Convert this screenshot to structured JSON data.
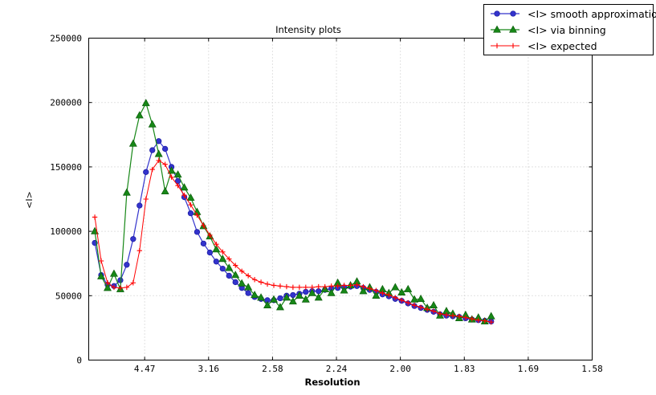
{
  "chart_data": {
    "type": "line",
    "title": "Intensity plots",
    "xlabel": "Resolution",
    "ylabel": "<I>",
    "grid": true,
    "legend_position": "upper right, partly outside axes",
    "xlim": [
      0.00625,
      0.4
    ],
    "ylim": [
      0,
      250000
    ],
    "xticks": [
      {
        "pos": 0.05,
        "label": "4.47"
      },
      {
        "pos": 0.1,
        "label": "3.16"
      },
      {
        "pos": 0.15,
        "label": "2.58"
      },
      {
        "pos": 0.2,
        "label": "2.24"
      },
      {
        "pos": 0.25,
        "label": "2.00"
      },
      {
        "pos": 0.3,
        "label": "1.83"
      },
      {
        "pos": 0.35,
        "label": "1.69"
      },
      {
        "pos": 0.4,
        "label": "1.58"
      }
    ],
    "yticks": [
      {
        "pos": 0,
        "label": "0"
      },
      {
        "pos": 50000,
        "label": "50000"
      },
      {
        "pos": 100000,
        "label": "100000"
      },
      {
        "pos": 150000,
        "label": "150000"
      },
      {
        "pos": 200000,
        "label": "200000"
      },
      {
        "pos": 250000,
        "label": "250000"
      }
    ],
    "x": [
      0.011,
      0.016,
      0.021,
      0.026,
      0.031,
      0.036,
      0.041,
      0.046,
      0.051,
      0.056,
      0.061,
      0.066,
      0.071,
      0.076,
      0.081,
      0.086,
      0.091,
      0.096,
      0.101,
      0.106,
      0.111,
      0.116,
      0.121,
      0.126,
      0.131,
      0.136,
      0.141,
      0.146,
      0.151,
      0.156,
      0.161,
      0.166,
      0.171,
      0.176,
      0.181,
      0.186,
      0.191,
      0.196,
      0.201,
      0.206,
      0.211,
      0.216,
      0.221,
      0.226,
      0.231,
      0.236,
      0.241,
      0.246,
      0.251,
      0.256,
      0.261,
      0.266,
      0.271,
      0.276,
      0.281,
      0.286,
      0.291,
      0.296,
      0.301,
      0.306,
      0.311,
      0.316,
      0.321
    ],
    "series": [
      {
        "name": "<I> smooth approximation",
        "color": "#3333cc",
        "marker": "circle",
        "values": [
          91000,
          66000,
          58500,
          57500,
          62000,
          74000,
          94000,
          120000,
          146000,
          163000,
          170000,
          164000,
          150000,
          139000,
          126500,
          114000,
          99500,
          90500,
          83500,
          76500,
          71000,
          65500,
          60500,
          56000,
          52000,
          49000,
          47500,
          46500,
          46500,
          48000,
          50000,
          50500,
          51500,
          53000,
          53500,
          53500,
          54500,
          55500,
          56000,
          56500,
          57000,
          57500,
          56000,
          54500,
          53000,
          51000,
          49500,
          47500,
          46000,
          44000,
          42000,
          40500,
          39000,
          37500,
          35500,
          34500,
          34000,
          33500,
          32500,
          31500,
          31000,
          30500,
          30000
        ]
      },
      {
        "name": "<I> via binning",
        "color": "#178717",
        "marker": "triangle",
        "values": [
          100000,
          65000,
          56000,
          67000,
          55000,
          130000,
          168000,
          190000,
          199500,
          183000,
          160000,
          131000,
          147000,
          144000,
          134000,
          126000,
          115000,
          104000,
          96000,
          86000,
          78500,
          71500,
          66000,
          59500,
          56500,
          50500,
          48500,
          42500,
          47000,
          41000,
          48500,
          45500,
          50000,
          47000,
          52000,
          48500,
          55000,
          52000,
          60000,
          54000,
          58000,
          61000,
          53500,
          56500,
          50000,
          55000,
          52000,
          56500,
          52500,
          55000,
          47000,
          47500,
          40500,
          42500,
          34500,
          38000,
          36000,
          32500,
          35000,
          31500,
          33000,
          30000,
          34000
        ]
      },
      {
        "name": "<I> expected",
        "color": "#ff0000",
        "marker": "plus",
        "values": [
          111000,
          77000,
          60000,
          56500,
          56000,
          56500,
          60000,
          85000,
          125000,
          148000,
          155000,
          152000,
          142000,
          135500,
          128000,
          120500,
          112500,
          104500,
          97000,
          90000,
          84000,
          78500,
          73500,
          69000,
          65500,
          62500,
          60500,
          59000,
          58000,
          57500,
          57000,
          56500,
          56500,
          56500,
          56500,
          57000,
          57000,
          57500,
          57500,
          58000,
          58000,
          58500,
          57000,
          55500,
          54000,
          52000,
          50500,
          48500,
          46500,
          44500,
          42500,
          41000,
          39500,
          38000,
          36000,
          35000,
          34500,
          34000,
          33000,
          32000,
          31000,
          30500,
          29500
        ]
      }
    ],
    "colors": {
      "grid": "#c4c4c4",
      "axis": "#000000",
      "background": "#ffffff"
    }
  }
}
